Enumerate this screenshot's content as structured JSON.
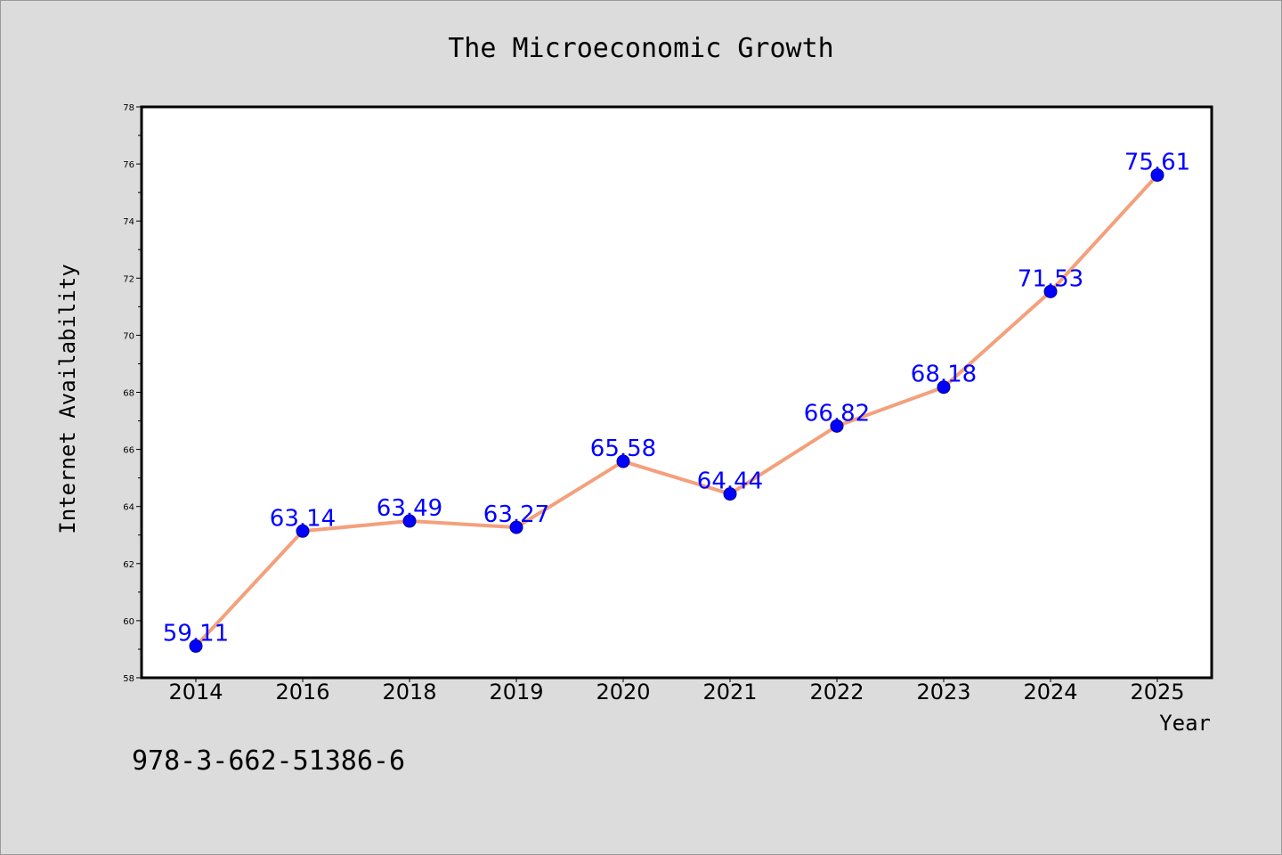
{
  "chart_data": {
    "type": "line",
    "title": "The Microeconomic Growth",
    "xlabel": "Year",
    "ylabel": "Internet Availability",
    "categories": [
      "2014",
      "2016",
      "2018",
      "2019",
      "2020",
      "2021",
      "2022",
      "2023",
      "2024",
      "2025"
    ],
    "series": [
      {
        "values": [
          59.11,
          63.14,
          63.49,
          63.27,
          65.58,
          64.44,
          66.82,
          68.18,
          71.53,
          75.61
        ],
        "line_color": "#f4a07c",
        "marker_color": "#0000ff"
      }
    ],
    "data_labels": [
      "59.11",
      "63.14",
      "63.49",
      "63.27",
      "65.58",
      "64.44",
      "66.82",
      "68.18",
      "71.53",
      "75.61"
    ],
    "ylim": [
      58,
      78
    ],
    "yticks": [
      "58",
      "60",
      "62",
      "64",
      "66",
      "68",
      "70",
      "72",
      "74",
      "76",
      "78"
    ],
    "grid": false,
    "legend": "none",
    "colors": {
      "background": "#dcdcdc",
      "plot_background": "#ffffff",
      "data_label": "#0000ff"
    }
  },
  "footnote": "978-3-662-51386-6"
}
